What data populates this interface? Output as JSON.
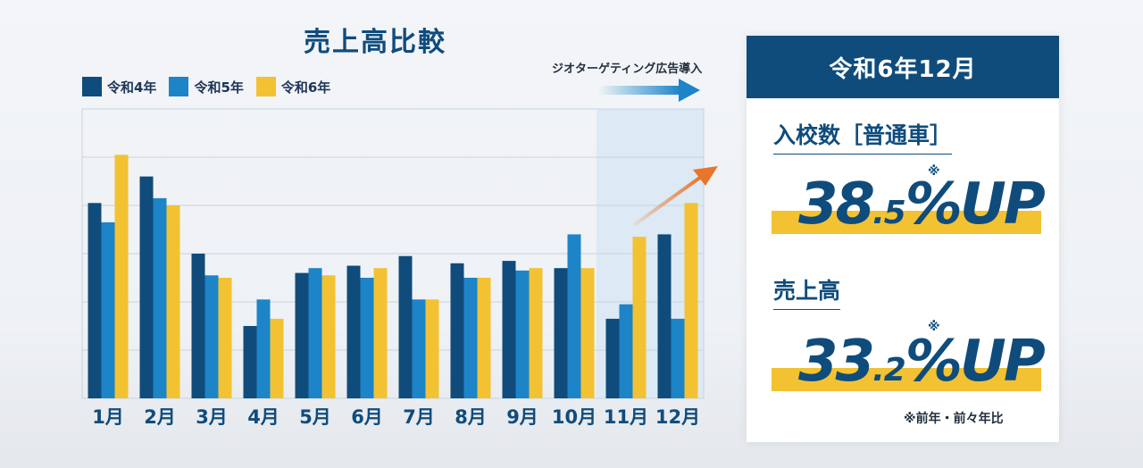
{
  "chart_data": {
    "type": "bar",
    "title": "売上高比較",
    "categories": [
      "1月",
      "2月",
      "3月",
      "4月",
      "5月",
      "6月",
      "7月",
      "8月",
      "9月",
      "10月",
      "11月",
      "12月"
    ],
    "series": [
      {
        "name": "令和4年",
        "color": "#0f4c7c",
        "values": [
          40.5,
          46,
          30,
          15,
          26,
          27.5,
          29.5,
          28,
          28.5,
          27,
          16.5,
          34
        ]
      },
      {
        "name": "令和5年",
        "color": "#1d84c8",
        "values": [
          36.5,
          41.5,
          25.5,
          20.5,
          27,
          25,
          20.5,
          25,
          26.5,
          34,
          19.5,
          16.5
        ]
      },
      {
        "name": "令和6年",
        "color": "#f3c232",
        "values": [
          50.5,
          40,
          25,
          16.5,
          25.5,
          27,
          20.5,
          25,
          27,
          27,
          33.5,
          40.5
        ]
      }
    ],
    "ylim": [
      0,
      60
    ],
    "gridlines": true,
    "legend_position": "top-left",
    "annotation": {
      "label": "ジオターゲティング広告導入",
      "highlight_categories": [
        "11月",
        "12月"
      ]
    }
  },
  "panel": {
    "header": "令和6年12月",
    "stats": [
      {
        "label": "入校数［普通車］",
        "value_big": "38",
        "value_small": ".5",
        "value_suffix": "%UP",
        "note": "※"
      },
      {
        "label": "売上高",
        "value_big": "33",
        "value_small": ".2",
        "value_suffix": "%UP",
        "note": "※"
      }
    ],
    "footnote": "※前年・前々年比"
  },
  "colors": {
    "navy": "#0f4c7c",
    "blue": "#1d84c8",
    "yellow": "#f3c232",
    "orange": "#e8752a",
    "highlight": "#dde9f4"
  }
}
